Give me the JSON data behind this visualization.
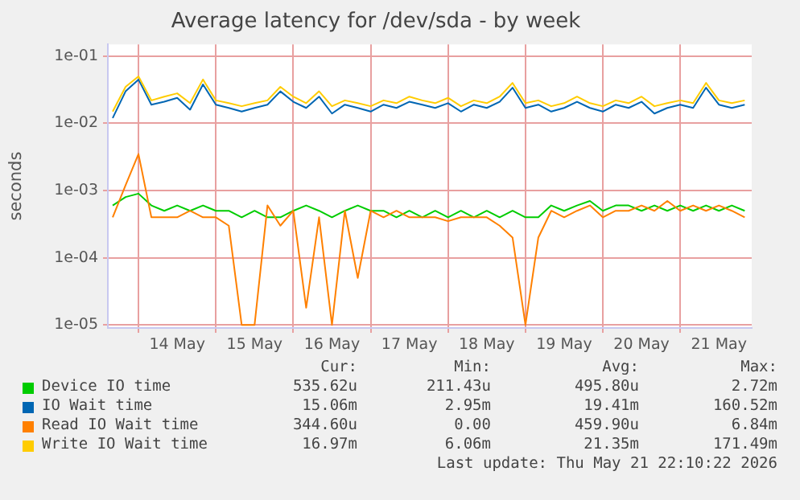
{
  "chart_data": {
    "type": "line",
    "title": "Average latency for /dev/sda - by week",
    "ylabel": "seconds",
    "log": "y",
    "grid": true,
    "legend": "bottom",
    "x": [
      "2026-05-13T16:00",
      "2026-05-13T20:00",
      "2026-05-14T00:00",
      "2026-05-14T04:00",
      "2026-05-14T08:00",
      "2026-05-14T12:00",
      "2026-05-14T16:00",
      "2026-05-14T20:00",
      "2026-05-15T00:00",
      "2026-05-15T04:00",
      "2026-05-15T08:00",
      "2026-05-15T12:00",
      "2026-05-15T16:00",
      "2026-05-15T20:00",
      "2026-05-16T00:00",
      "2026-05-16T04:00",
      "2026-05-16T08:00",
      "2026-05-16T12:00",
      "2026-05-16T16:00",
      "2026-05-16T20:00",
      "2026-05-17T00:00",
      "2026-05-17T04:00",
      "2026-05-17T08:00",
      "2026-05-17T12:00",
      "2026-05-17T16:00",
      "2026-05-17T20:00",
      "2026-05-18T00:00",
      "2026-05-18T04:00",
      "2026-05-18T08:00",
      "2026-05-18T12:00",
      "2026-05-18T16:00",
      "2026-05-18T20:00",
      "2026-05-19T00:00",
      "2026-05-19T04:00",
      "2026-05-19T08:00",
      "2026-05-19T12:00",
      "2026-05-19T16:00",
      "2026-05-19T20:00",
      "2026-05-20T00:00",
      "2026-05-20T04:00",
      "2026-05-20T08:00",
      "2026-05-20T12:00",
      "2026-05-20T16:00",
      "2026-05-20T20:00",
      "2026-05-21T00:00",
      "2026-05-21T04:00",
      "2026-05-21T08:00",
      "2026-05-21T12:00",
      "2026-05-21T16:00",
      "2026-05-21T20:00"
    ],
    "xlim": [
      "2026-05-13T14:30",
      "2026-05-21T22:10"
    ],
    "xticks": [
      {
        "value": "2026-05-14T00:00",
        "label": null
      },
      {
        "value": "2026-05-14T12:00",
        "label": "14 May"
      },
      {
        "value": "2026-05-15T00:00",
        "label": null
      },
      {
        "value": "2026-05-15T12:00",
        "label": "15 May"
      },
      {
        "value": "2026-05-16T00:00",
        "label": null
      },
      {
        "value": "2026-05-16T12:00",
        "label": "16 May"
      },
      {
        "value": "2026-05-17T00:00",
        "label": null
      },
      {
        "value": "2026-05-17T12:00",
        "label": "17 May"
      },
      {
        "value": "2026-05-18T00:00",
        "label": null
      },
      {
        "value": "2026-05-18T12:00",
        "label": "18 May"
      },
      {
        "value": "2026-05-19T00:00",
        "label": null
      },
      {
        "value": "2026-05-19T12:00",
        "label": "19 May"
      },
      {
        "value": "2026-05-20T00:00",
        "label": null
      },
      {
        "value": "2026-05-20T12:00",
        "label": "20 May"
      },
      {
        "value": "2026-05-21T00:00",
        "label": null
      },
      {
        "value": "2026-05-21T12:00",
        "label": "21 May"
      }
    ],
    "ylim": [
      9e-06,
      0.15
    ],
    "yticks": [
      {
        "value": 1e-05,
        "label": "1e-05"
      },
      {
        "value": 0.0001,
        "label": "1e-04"
      },
      {
        "value": 0.001,
        "label": "1e-03"
      },
      {
        "value": 0.01,
        "label": "1e-02"
      },
      {
        "value": 0.1,
        "label": "1e-01"
      }
    ],
    "series": [
      {
        "name": "Device IO time",
        "color": "#00cc00",
        "values": [
          0.0006,
          0.0008,
          0.0009,
          0.0006,
          0.0005,
          0.0006,
          0.0005,
          0.0006,
          0.0005,
          0.0005,
          0.0004,
          0.0005,
          0.0004,
          0.0004,
          0.0005,
          0.0006,
          0.0005,
          0.0004,
          0.0005,
          0.0006,
          0.0005,
          0.0005,
          0.0004,
          0.0005,
          0.0004,
          0.0005,
          0.0004,
          0.0005,
          0.0004,
          0.0005,
          0.0004,
          0.0005,
          0.0004,
          0.0004,
          0.0006,
          0.0005,
          0.0006,
          0.0007,
          0.0005,
          0.0006,
          0.0006,
          0.0005,
          0.0006,
          0.0005,
          0.0006,
          0.0005,
          0.0006,
          0.0005,
          0.0006,
          0.0005
        ]
      },
      {
        "name": "IO Wait time",
        "color": "#0066b3",
        "values": [
          0.012,
          0.03,
          0.045,
          0.019,
          0.021,
          0.024,
          0.016,
          0.038,
          0.019,
          0.017,
          0.015,
          0.017,
          0.019,
          0.03,
          0.021,
          0.017,
          0.025,
          0.014,
          0.019,
          0.017,
          0.015,
          0.019,
          0.017,
          0.021,
          0.019,
          0.017,
          0.02,
          0.015,
          0.019,
          0.017,
          0.021,
          0.034,
          0.017,
          0.019,
          0.015,
          0.017,
          0.021,
          0.017,
          0.015,
          0.019,
          0.017,
          0.021,
          0.014,
          0.017,
          0.019,
          0.017,
          0.034,
          0.019,
          0.017,
          0.019
        ]
      },
      {
        "name": "Read IO Wait time",
        "color": "#ff8000",
        "values": [
          0.0004,
          0.0012,
          0.0035,
          0.0004,
          0.0004,
          0.0004,
          0.0005,
          0.0004,
          0.0004,
          0.0003,
          1e-05,
          1e-05,
          0.0006,
          0.0003,
          0.0005,
          1.8e-05,
          0.0004,
          1e-05,
          0.0005,
          5e-05,
          0.0005,
          0.0004,
          0.0005,
          0.0004,
          0.0004,
          0.0004,
          0.00035,
          0.0004,
          0.0004,
          0.0004,
          0.0003,
          0.0002,
          1e-05,
          0.0002,
          0.0005,
          0.0004,
          0.0005,
          0.0006,
          0.0004,
          0.0005,
          0.0005,
          0.0006,
          0.0005,
          0.0007,
          0.0005,
          0.0006,
          0.0005,
          0.0006,
          0.0005,
          0.0004
        ]
      },
      {
        "name": "Write IO Wait time",
        "color": "#ffcc00",
        "values": [
          0.015,
          0.035,
          0.05,
          0.022,
          0.025,
          0.028,
          0.02,
          0.045,
          0.022,
          0.02,
          0.018,
          0.02,
          0.022,
          0.035,
          0.025,
          0.02,
          0.03,
          0.018,
          0.022,
          0.02,
          0.018,
          0.022,
          0.02,
          0.025,
          0.022,
          0.02,
          0.024,
          0.018,
          0.022,
          0.02,
          0.025,
          0.04,
          0.02,
          0.022,
          0.018,
          0.02,
          0.025,
          0.02,
          0.018,
          0.022,
          0.02,
          0.025,
          0.018,
          0.02,
          0.022,
          0.02,
          0.04,
          0.022,
          0.02,
          0.022
        ]
      }
    ],
    "annotations": [
      "Cur:",
      "Min:",
      "Avg:",
      "Max:",
      "535.62u",
      "211.43u",
      "495.80u",
      "2.72m",
      "15.06m",
      "2.95m",
      "19.41m",
      "160.52m",
      "344.60u",
      "0.00",
      "459.90u",
      "6.84m",
      "16.97m",
      "6.06m",
      "21.35m",
      "171.49m",
      "Last update: Thu May 21 22:10:22 2026"
    ]
  }
}
